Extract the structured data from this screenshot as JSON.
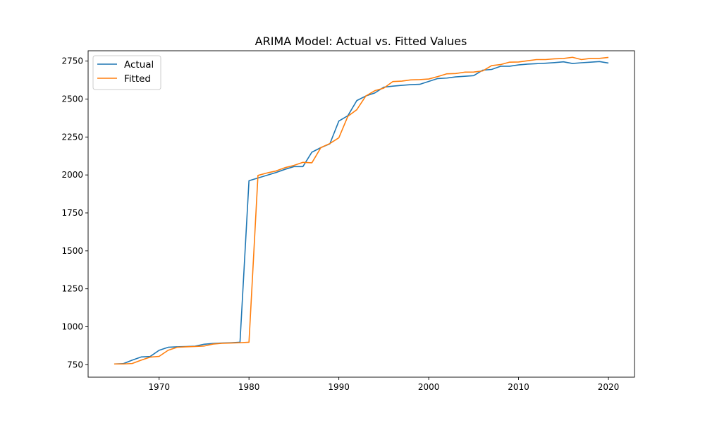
{
  "chart_data": {
    "type": "line",
    "title": "ARIMA Model: Actual vs. Fitted Values",
    "xlabel": "",
    "ylabel": "",
    "xlim": [
      1962.1,
      2022.9
    ],
    "ylim": [
      668,
      2818
    ],
    "x_ticks": [
      1970,
      1980,
      1990,
      2000,
      2010,
      2020
    ],
    "y_ticks": [
      750,
      1000,
      1250,
      1500,
      1750,
      2000,
      2250,
      2500,
      2750
    ],
    "grid": false,
    "legend_position": "top-left",
    "x": [
      1965,
      1966,
      1967,
      1968,
      1969,
      1970,
      1971,
      1972,
      1973,
      1974,
      1975,
      1976,
      1977,
      1978,
      1979,
      1980,
      1981,
      1982,
      1983,
      1984,
      1985,
      1986,
      1987,
      1988,
      1989,
      1990,
      1991,
      1992,
      1993,
      1994,
      1995,
      1996,
      1997,
      1998,
      1999,
      2000,
      2001,
      2002,
      2003,
      2004,
      2005,
      2006,
      2007,
      2008,
      2009,
      2010,
      2011,
      2012,
      2013,
      2014,
      2015,
      2016,
      2017,
      2018,
      2019,
      2020
    ],
    "series": [
      {
        "name": "Actual",
        "color": "#1f77b4",
        "values": [
          755,
          757,
          780,
          801,
          804,
          845,
          865,
          868,
          870,
          872,
          885,
          890,
          893,
          895,
          898,
          1962,
          1980,
          1998,
          2016,
          2037,
          2055,
          2055,
          2150,
          2180,
          2205,
          2355,
          2390,
          2490,
          2520,
          2540,
          2578,
          2585,
          2590,
          2595,
          2597,
          2616,
          2635,
          2638,
          2646,
          2650,
          2654,
          2690,
          2695,
          2716,
          2716,
          2725,
          2730,
          2733,
          2736,
          2740,
          2745,
          2734,
          2739,
          2743,
          2747,
          2737
        ]
      },
      {
        "name": "Fitted",
        "color": "#ff7f0e",
        "values": [
          755,
          755,
          758,
          780,
          800,
          805,
          845,
          865,
          868,
          870,
          873,
          886,
          891,
          893,
          895,
          898,
          1997,
          2013,
          2026,
          2048,
          2063,
          2083,
          2080,
          2180,
          2207,
          2245,
          2386,
          2430,
          2520,
          2555,
          2572,
          2615,
          2618,
          2626,
          2628,
          2632,
          2648,
          2666,
          2668,
          2677,
          2678,
          2685,
          2720,
          2727,
          2743,
          2744,
          2752,
          2760,
          2760,
          2765,
          2767,
          2775,
          2760,
          2768,
          2768,
          2774
        ]
      }
    ]
  }
}
